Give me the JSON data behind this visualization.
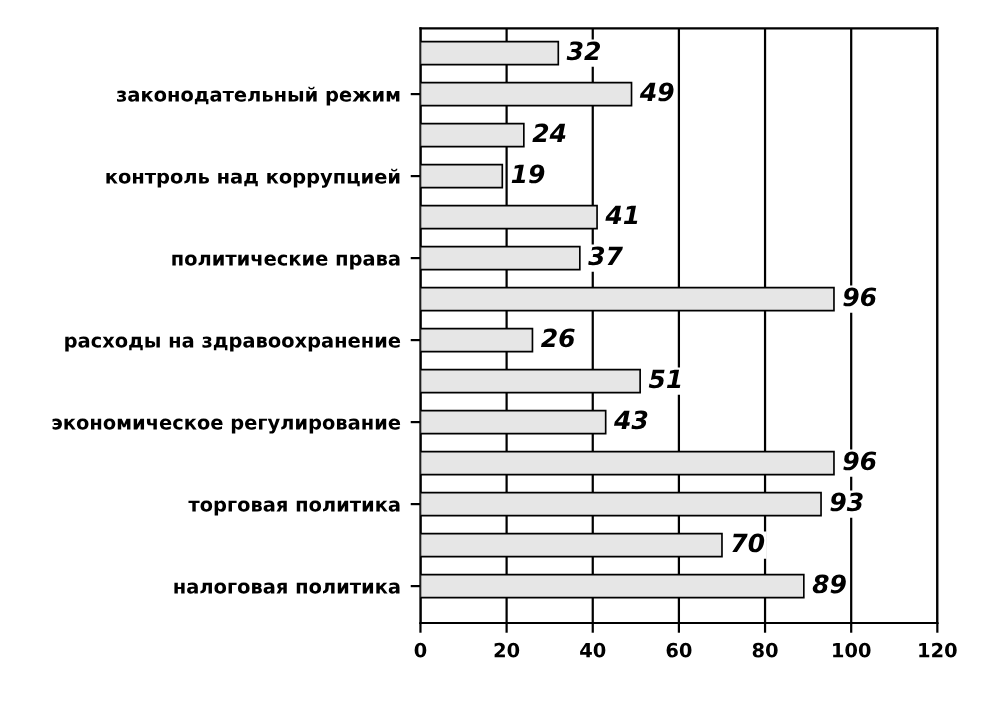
{
  "chart_data": {
    "type": "bar",
    "orientation": "horizontal",
    "categories": [
      "законодательный режим",
      "контроль над коррупцией",
      "политические права",
      "расходы на здравоохранение",
      "экономическое регулирование",
      "торговая политика",
      "налоговая политика"
    ],
    "series": [
      {
        "color": "#e6e6e6",
        "values": [
          32,
          24,
          41,
          96,
          51,
          96,
          70
        ]
      },
      {
        "color": "#e6e6e6",
        "values": [
          49,
          19,
          37,
          26,
          43,
          93,
          89
        ]
      }
    ],
    "xlim": [
      0,
      120
    ],
    "xticks": [
      0,
      20,
      40,
      60,
      80,
      100,
      120
    ],
    "grid": "x",
    "data_labels": true
  }
}
